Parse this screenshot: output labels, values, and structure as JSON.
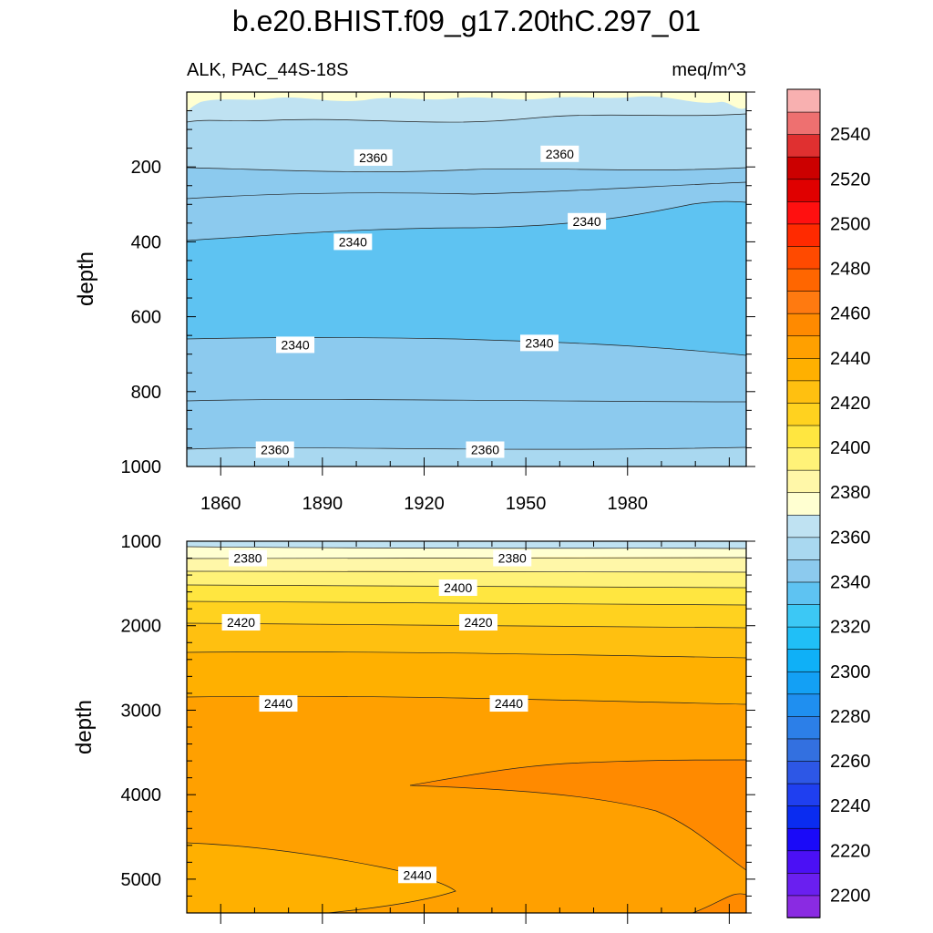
{
  "chart_data": {
    "type": "contour",
    "title": "b.e20.BHIST.f09_g17.20thC.297_01",
    "subtitle_left": "ALK, PAC_44S-18S",
    "subtitle_right": "meq/m^3",
    "colorbar": {
      "levels": [
        2200,
        2210,
        2220,
        2230,
        2240,
        2250,
        2260,
        2270,
        2280,
        2290,
        2300,
        2310,
        2320,
        2330,
        2340,
        2350,
        2360,
        2370,
        2380,
        2390,
        2400,
        2410,
        2420,
        2430,
        2440,
        2450,
        2460,
        2470,
        2480,
        2490,
        2500,
        2510,
        2520,
        2530,
        2540,
        2550
      ],
      "colors": [
        "#8a2be2",
        "#6a1ff0",
        "#4b10f5",
        "#1a0af8",
        "#0a2cf0",
        "#1f3ff0",
        "#2d57e6",
        "#3370e0",
        "#2c7fe8",
        "#1f8ff0",
        "#13a0f5",
        "#0fb0f7",
        "#20bff7",
        "#3cc8f5",
        "#5ec3f2",
        "#8ccaee",
        "#a9d8f0",
        "#bfe2f2",
        "#ffffd1",
        "#fff7a8",
        "#fff278",
        "#ffe640",
        "#ffd21f",
        "#ffc010",
        "#ffb000",
        "#ffa000",
        "#ff8a00",
        "#ff7a10",
        "#ff6600",
        "#ff4a00",
        "#ff2a00",
        "#ff1010",
        "#e00000",
        "#cc0000",
        "#e03030",
        "#ee7070",
        "#f8b0b0"
      ],
      "tick_labels": [
        "2200",
        "2220",
        "2240",
        "2260",
        "2280",
        "2300",
        "2320",
        "2340",
        "2360",
        "2380",
        "2400",
        "2420",
        "2440",
        "2460",
        "2480",
        "2500",
        "2520",
        "2540"
      ]
    },
    "top_panel": {
      "ylabel": "depth",
      "xlabel": "",
      "x_range": [
        1850,
        2015
      ],
      "y_range": [
        0,
        1000
      ],
      "y_reversed": true,
      "x_tick_labels": [
        "1860",
        "1890",
        "1920",
        "1950",
        "1980"
      ],
      "y_tick_labels": [
        "200",
        "400",
        "600",
        "800",
        "1000"
      ],
      "contour_labels": [
        {
          "text": "2360",
          "x": 1905,
          "y": 175
        },
        {
          "text": "2360",
          "x": 1960,
          "y": 165
        },
        {
          "text": "2340",
          "x": 1899,
          "y": 400
        },
        {
          "text": "2340",
          "x": 1968,
          "y": 345
        },
        {
          "text": "2340",
          "x": 1882,
          "y": 675
        },
        {
          "text": "2340",
          "x": 1954,
          "y": 670
        },
        {
          "text": "2360",
          "x": 1876,
          "y": 955
        },
        {
          "text": "2360",
          "x": 1938,
          "y": 955
        }
      ]
    },
    "bottom_panel": {
      "ylabel": "depth",
      "xlabel": "",
      "x_range": [
        1850,
        2015
      ],
      "y_range": [
        1000,
        5400
      ],
      "y_reversed": true,
      "y_tick_labels": [
        "1000",
        "2000",
        "3000",
        "4000",
        "5000"
      ],
      "contour_labels": [
        {
          "text": "2380",
          "x": 1868,
          "y": 1200
        },
        {
          "text": "2380",
          "x": 1946,
          "y": 1200
        },
        {
          "text": "2400",
          "x": 1930,
          "y": 1550
        },
        {
          "text": "2420",
          "x": 1866,
          "y": 1960
        },
        {
          "text": "2420",
          "x": 1936,
          "y": 1960
        },
        {
          "text": "2440",
          "x": 1877,
          "y": 2920
        },
        {
          "text": "2440",
          "x": 1945,
          "y": 2920
        },
        {
          "text": "2440",
          "x": 1918,
          "y": 4950
        }
      ]
    }
  }
}
